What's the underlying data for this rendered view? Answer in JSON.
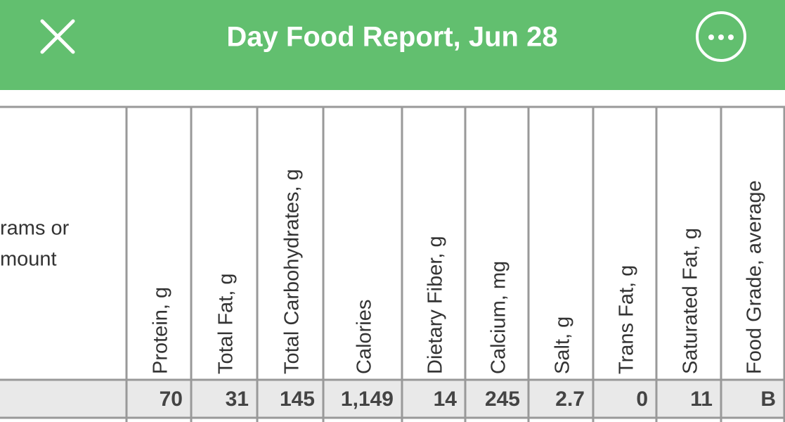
{
  "header": {
    "title": "Day Food Report, Jun 28"
  },
  "table": {
    "first_column_header": [
      "rams or",
      "mount"
    ],
    "columns": [
      "Protein, g",
      "Total Fat, g",
      "Total Carbohydrates, g",
      "Calories",
      "Dietary Fiber, g",
      "Calcium, mg",
      "Salt, g",
      "Trans Fat, g",
      "Saturated Fat, g",
      "Food Grade, average"
    ],
    "totals": [
      "70",
      "31",
      "145",
      "1,149",
      "14",
      "245",
      "2.7",
      "0",
      "11",
      "B"
    ]
  }
}
